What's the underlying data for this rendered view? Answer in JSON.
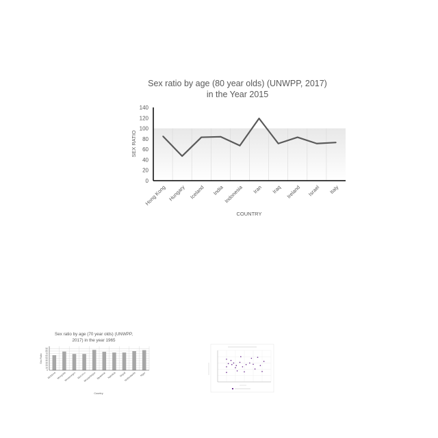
{
  "chart_data": [
    {
      "type": "line",
      "title_line1": "Sex ratio by age (80 year olds) (UNWPP, 2017)",
      "title_line2": "in the Year 2015",
      "xlabel": "COUNTRY",
      "ylabel": "SEX RATIO",
      "categories": [
        "Hong Kong",
        "Hungary",
        "Iceland",
        "India",
        "Indonesia",
        "Iran",
        "Iraq",
        "Ireland",
        "Israel",
        "Italy"
      ],
      "values": [
        85,
        47,
        83,
        84,
        67,
        119,
        71,
        83,
        71,
        73
      ],
      "ylim": [
        0,
        140
      ],
      "yticks": [
        "0",
        "20",
        "40",
        "60",
        "80",
        "100",
        "120",
        "140"
      ],
      "grid": true,
      "line_color": "#595959"
    },
    {
      "type": "bar",
      "title_line1": "Sex ratio by age (70 year olds) (UNWPP,",
      "title_line2": "2017) in the year 1965",
      "xlabel": "Country",
      "ylabel": "Sex Ratio",
      "categories": [
        "Moldova",
        "Mongolia",
        "Montenegro",
        "Morocco",
        "Mozambique",
        "Myanmar",
        "Namibia",
        "Nepal",
        "Netherlands",
        "Niger"
      ],
      "values": [
        63,
        78,
        68,
        68,
        85,
        77,
        74,
        74,
        80,
        84
      ],
      "ylim": [
        0,
        100
      ],
      "yticks": [
        "0",
        "10",
        "20",
        "30",
        "40",
        "50",
        "60",
        "70",
        "80",
        "90"
      ],
      "grid": true,
      "bar_color": "#a6a6a6"
    },
    {
      "type": "scatter",
      "title": "",
      "legend": "",
      "points": [
        [
          1,
          7.2
        ],
        [
          1,
          4.8
        ],
        [
          1,
          3.0
        ],
        [
          1.2,
          5.8
        ],
        [
          1.5,
          6.8
        ],
        [
          1.6,
          5.5
        ],
        [
          1.8,
          6.0
        ],
        [
          2.0,
          4.5
        ],
        [
          2.1,
          5.2
        ],
        [
          2.2,
          3.5
        ],
        [
          2.5,
          6.2
        ],
        [
          2.6,
          8.0
        ],
        [
          2.8,
          4.8
        ],
        [
          3.0,
          3.2
        ],
        [
          3.2,
          5.5
        ],
        [
          3.6,
          6.0
        ],
        [
          3.8,
          7.5
        ],
        [
          4.0,
          5.6
        ],
        [
          4.2,
          4.1
        ],
        [
          4.5,
          7.8
        ],
        [
          4.8,
          5.2
        ],
        [
          5.0,
          3.3
        ],
        [
          5.2,
          6.5
        ]
      ],
      "xlim": [
        0,
        6
      ],
      "ylim": [
        0,
        10
      ],
      "grid": true,
      "point_color": "#6b2d8f"
    }
  ]
}
